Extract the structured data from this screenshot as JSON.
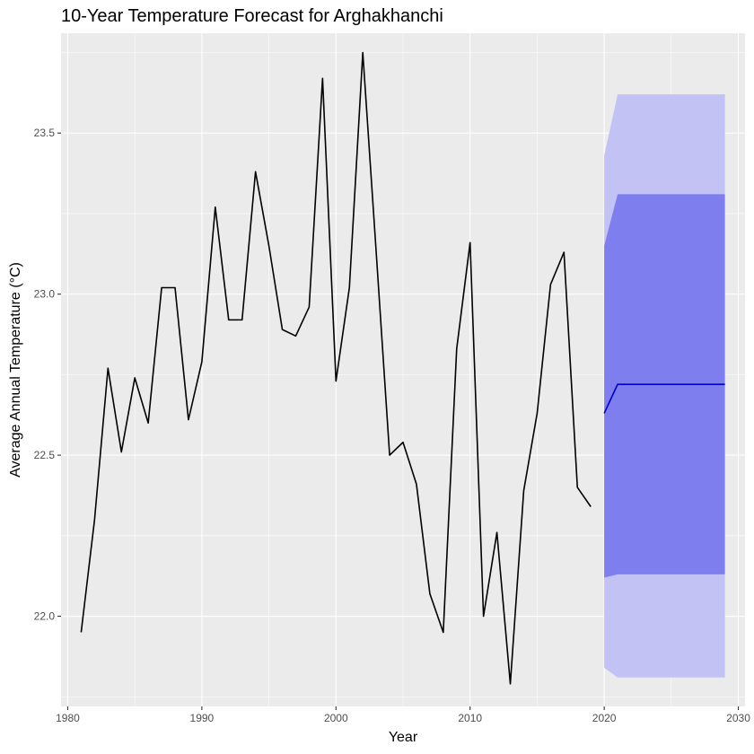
{
  "chart_data": {
    "type": "line",
    "title": "10-Year Temperature Forecast for Arghakhanchi",
    "xlabel": "Year",
    "ylabel": "Average Annual Temperature (°C)",
    "xlim": [
      1979.5,
      2030.5
    ],
    "ylim": [
      21.72,
      23.81
    ],
    "x_ticks": [
      1980,
      1990,
      2000,
      2010,
      2020,
      2030
    ],
    "x_tick_labels": [
      "1980",
      "1990",
      "2000",
      "2010",
      "2020",
      "2030"
    ],
    "y_ticks": [
      22.0,
      22.5,
      23.0,
      23.5
    ],
    "y_tick_labels": [
      "22.0",
      "22.5",
      "23.0",
      "23.5"
    ],
    "grid": true,
    "legend": "none",
    "colors": {
      "panel_background": "#EBEBEB",
      "grid": "#FFFFFF",
      "history_line": "#000000",
      "forecast_line": "#0000CC",
      "interval_95": "#C2C2F4",
      "interval_80": "#7E7EEE"
    },
    "series": [
      {
        "role": "history",
        "x": [
          1981,
          1982,
          1983,
          1984,
          1985,
          1986,
          1987,
          1988,
          1989,
          1990,
          1991,
          1992,
          1993,
          1994,
          1995,
          1996,
          1997,
          1998,
          1999,
          2000,
          2001,
          2002,
          2003,
          2004,
          2005,
          2006,
          2007,
          2008,
          2009,
          2010,
          2011,
          2012,
          2013,
          2014,
          2015,
          2016,
          2017,
          2018,
          2019
        ],
        "values": [
          21.95,
          22.3,
          22.77,
          22.51,
          22.74,
          22.6,
          23.02,
          23.02,
          22.61,
          22.79,
          23.27,
          22.92,
          22.92,
          23.38,
          23.15,
          22.89,
          22.87,
          22.96,
          23.67,
          22.73,
          23.02,
          23.75,
          23.13,
          22.5,
          22.54,
          22.41,
          22.07,
          21.95,
          22.83,
          23.16,
          22.0,
          22.26,
          21.79,
          22.39,
          22.63,
          23.03,
          23.13,
          22.4,
          22.34
        ]
      },
      {
        "role": "forecast",
        "x": [
          2020,
          2021,
          2022,
          2023,
          2024,
          2025,
          2026,
          2027,
          2028,
          2029
        ],
        "values": [
          22.63,
          22.72,
          22.72,
          22.72,
          22.72,
          22.72,
          22.72,
          22.72,
          22.72,
          22.72
        ],
        "lo80": [
          22.12,
          22.13,
          22.13,
          22.13,
          22.13,
          22.13,
          22.13,
          22.13,
          22.13,
          22.13
        ],
        "hi80": [
          23.15,
          23.31,
          23.31,
          23.31,
          23.31,
          23.31,
          23.31,
          23.31,
          23.31,
          23.31
        ],
        "lo95": [
          21.84,
          21.81,
          21.81,
          21.81,
          21.81,
          21.81,
          21.81,
          21.81,
          21.81,
          21.81
        ],
        "hi95": [
          23.43,
          23.62,
          23.62,
          23.62,
          23.62,
          23.62,
          23.62,
          23.62,
          23.62,
          23.62
        ]
      }
    ]
  }
}
